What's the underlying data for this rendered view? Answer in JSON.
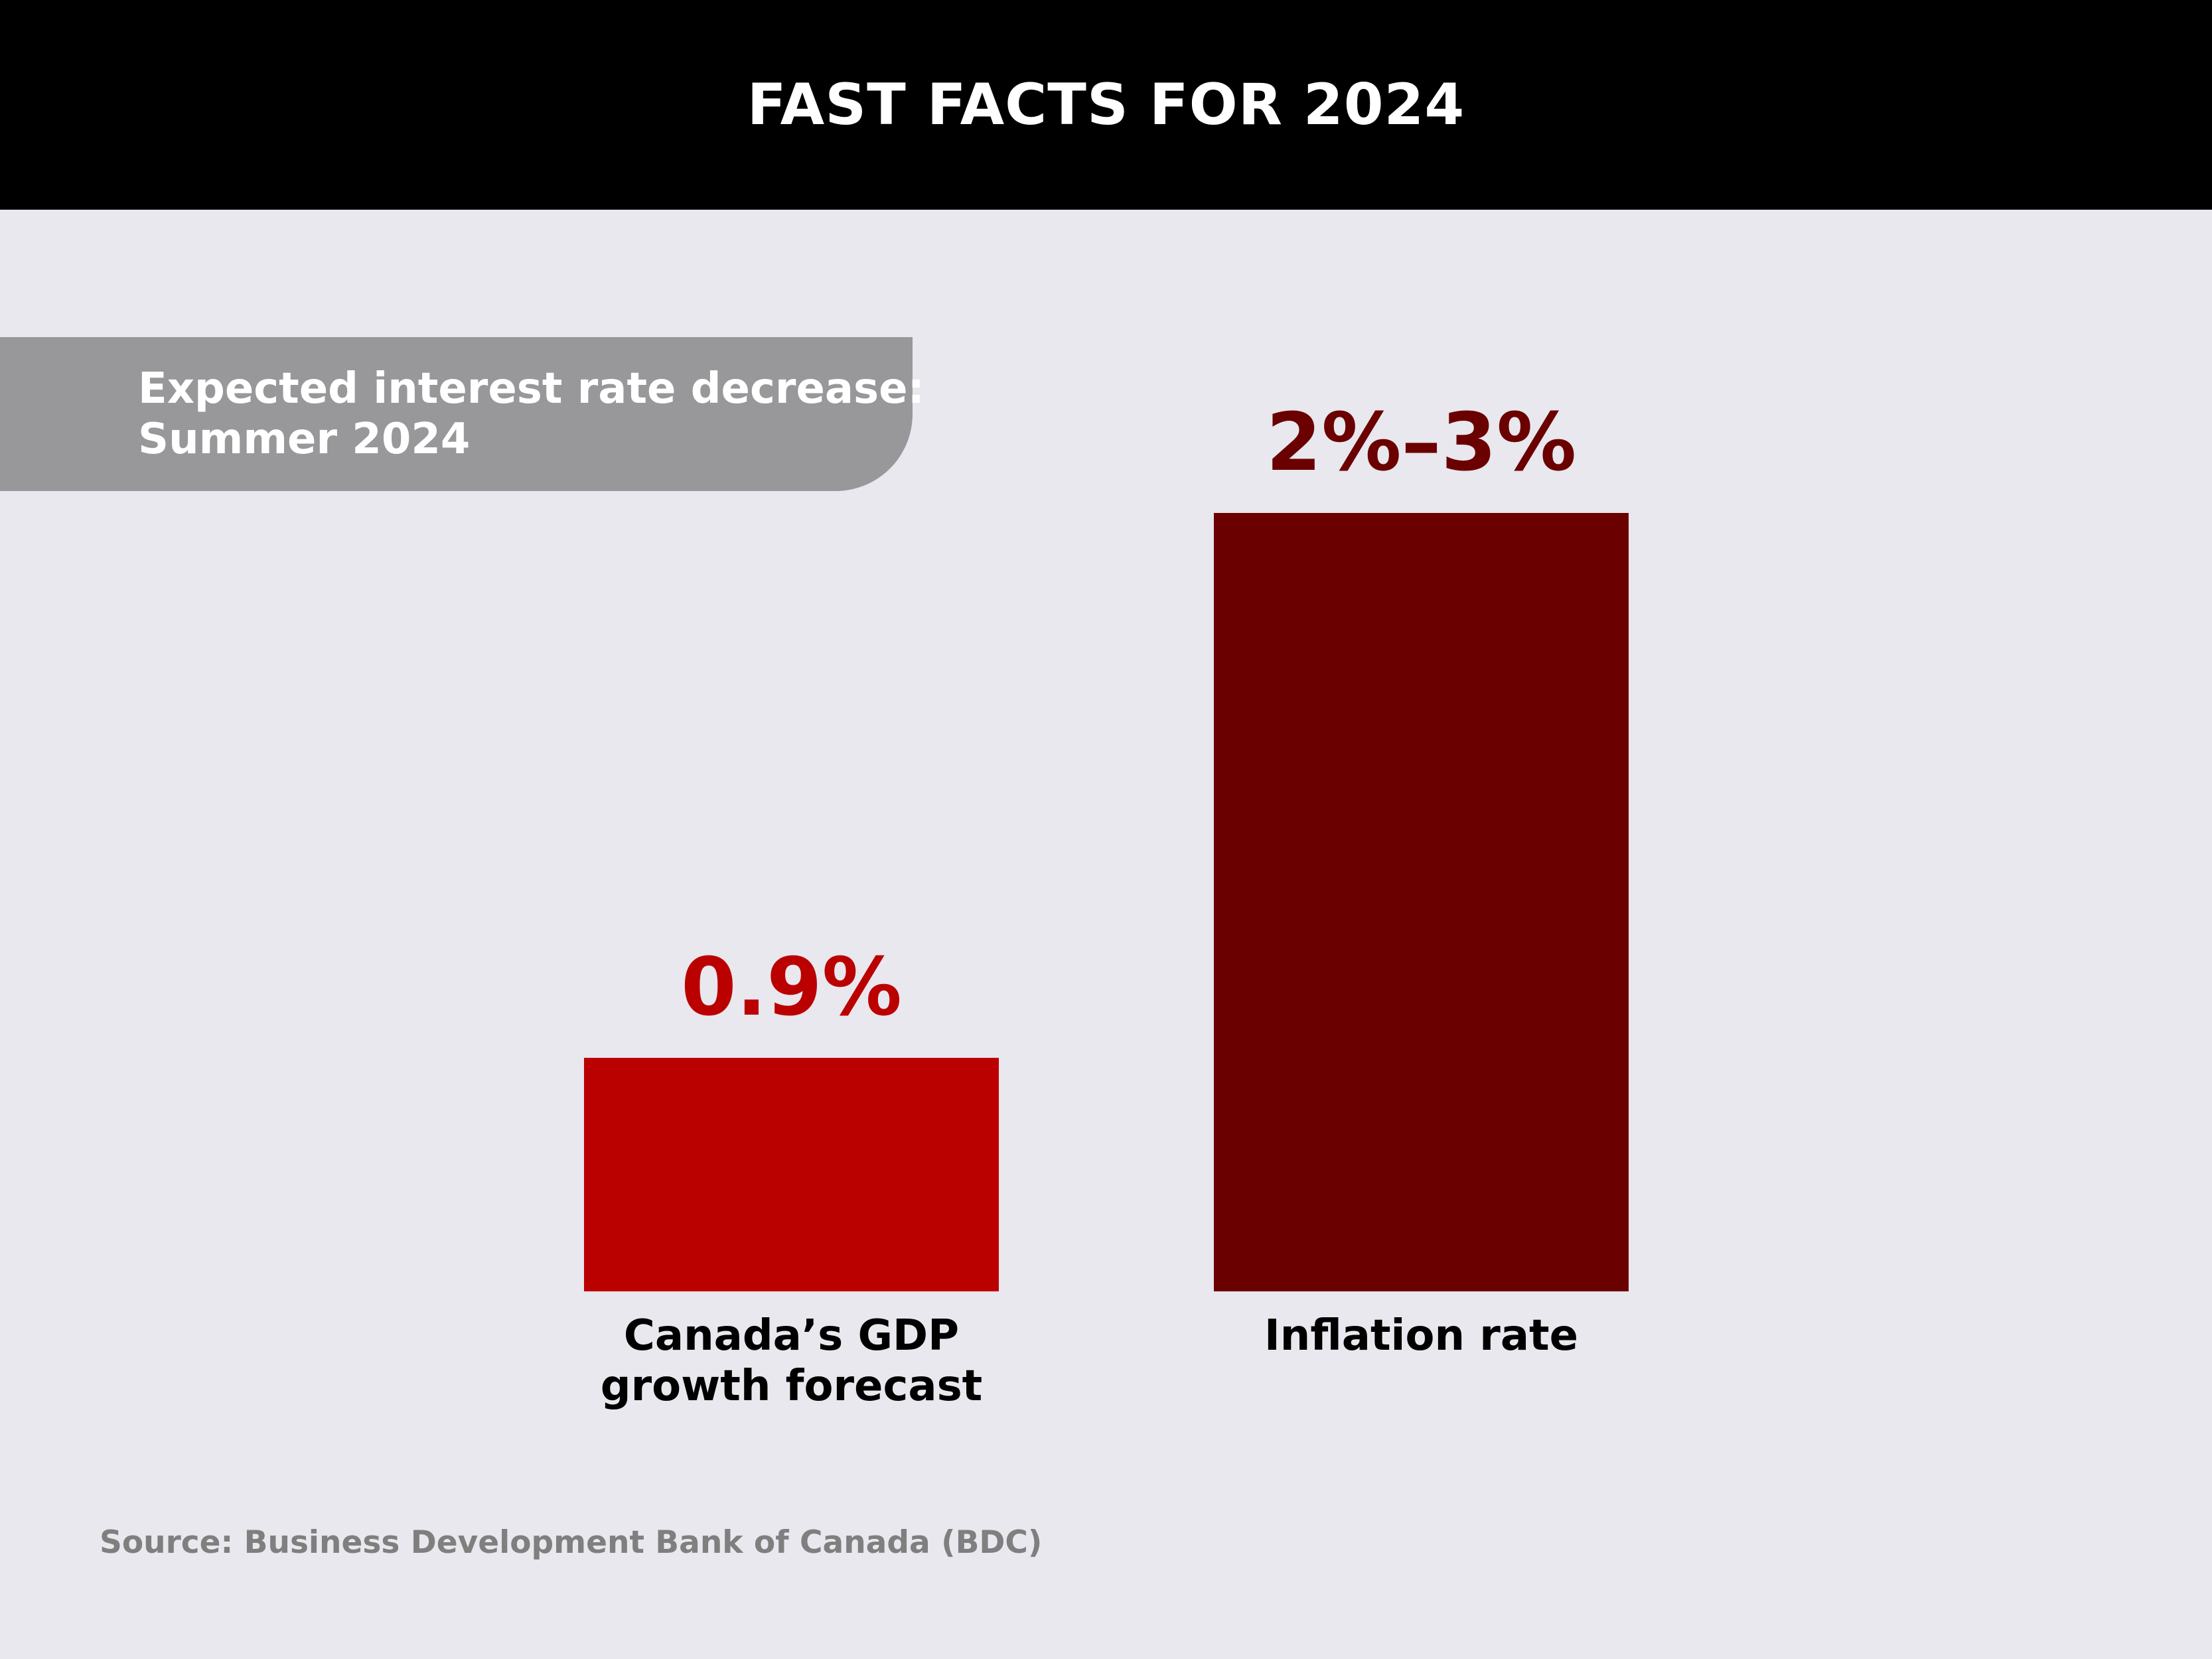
{
  "header": {
    "title": "FAST FACTS FOR 2024"
  },
  "callout": {
    "line1": "Expected interest rate decrease:",
    "line2": "Summer 2024"
  },
  "chart_data": {
    "type": "bar",
    "title": "",
    "xlabel": "",
    "ylabel": "",
    "ylim": [
      0,
      3
    ],
    "grid": false,
    "categories": [
      {
        "label_line1": "Canada’s GDP",
        "label_line2": "growth forecast"
      },
      {
        "label_line1": "Inflation rate",
        "label_line2": ""
      }
    ],
    "values": [
      0.9,
      3
    ],
    "data_labels": [
      "0.9%",
      "2%–3%"
    ],
    "colors": [
      "#bb0000",
      "#6b0000"
    ]
  },
  "source": {
    "text": "Source: Business Development Bank of Canada (BDC)"
  }
}
